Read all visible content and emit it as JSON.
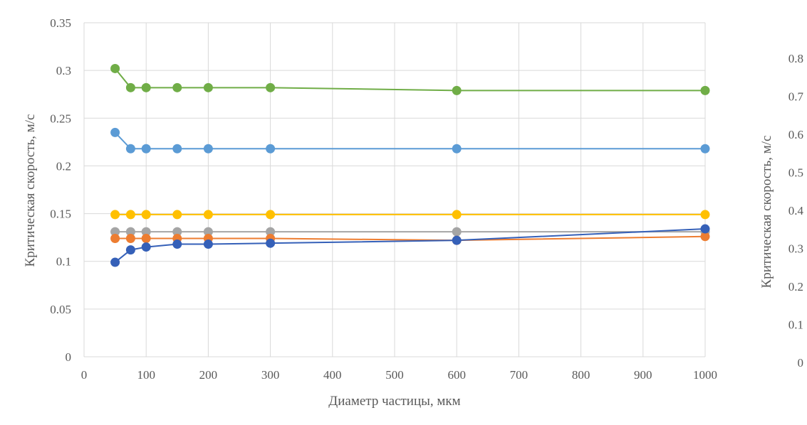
{
  "chart_data": {
    "type": "line",
    "title": "",
    "xlabel": "Диаметр частицы, мкм",
    "ylabel": "Критическая скорость, м/с",
    "y2label": "Критическая скорость, м/с",
    "xlim": [
      0,
      1000
    ],
    "ylim": [
      0,
      0.35
    ],
    "y2lim": [
      0,
      0.8
    ],
    "xticks": [
      "0",
      "100",
      "200",
      "300",
      "400",
      "500",
      "600",
      "700",
      "800",
      "900",
      "1000"
    ],
    "yticks": [
      "0",
      "0.05",
      "0.1",
      "0.15",
      "0.2",
      "0.25",
      "0.3",
      "0.35"
    ],
    "y2ticks": [
      "0",
      "0.1",
      "0.2",
      "0.3",
      "0.4",
      "0.5",
      "0.6",
      "0.7",
      "0.8"
    ],
    "grid": true,
    "x": [
      50,
      75,
      100,
      150,
      200,
      300,
      600,
      1000
    ],
    "series": [
      {
        "color": "#70ad47",
        "values": [
          0.302,
          0.282,
          0.282,
          0.282,
          0.282,
          0.282,
          0.279,
          0.279
        ]
      },
      {
        "color": "#5b9bd5",
        "values": [
          0.235,
          0.218,
          0.218,
          0.218,
          0.218,
          0.218,
          0.218,
          0.218
        ]
      },
      {
        "color": "#ffc000",
        "values": [
          0.149,
          0.149,
          0.149,
          0.149,
          0.149,
          0.149,
          0.149,
          0.149
        ]
      },
      {
        "color": "#a5a5a5",
        "values": [
          0.131,
          0.131,
          0.131,
          0.131,
          0.131,
          0.131,
          0.131,
          0.131
        ]
      },
      {
        "color": "#ed7d31",
        "values": [
          0.124,
          0.124,
          0.124,
          0.124,
          0.124,
          0.124,
          0.122,
          0.126
        ]
      },
      {
        "color": "#3560b8",
        "values": [
          0.099,
          0.112,
          0.115,
          0.118,
          0.118,
          0.119,
          0.122,
          0.134
        ]
      }
    ]
  }
}
